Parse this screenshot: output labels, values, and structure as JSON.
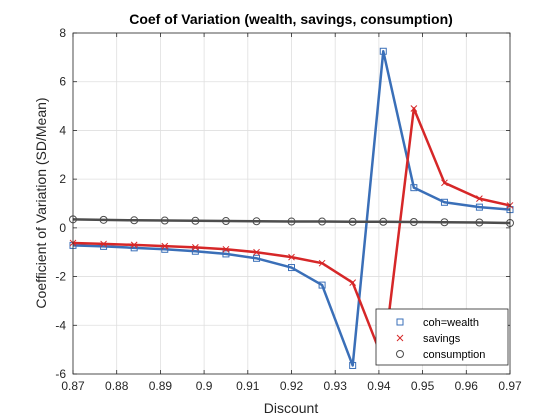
{
  "chart_data": {
    "type": "line",
    "title": "Coef of Variation (wealth, savings, consumption)",
    "xlabel": "Discount",
    "ylabel": "Coefficient of Variation (SD/Mean)",
    "xlim": [
      0.87,
      0.97
    ],
    "ylim": [
      -6,
      8
    ],
    "xticks": [
      "0.87",
      "0.88",
      "0.89",
      "0.9",
      "0.91",
      "0.92",
      "0.93",
      "0.94",
      "0.95",
      "0.96",
      "0.97"
    ],
    "yticks": [
      "-6",
      "-4",
      "-2",
      "0",
      "2",
      "4",
      "6",
      "8"
    ],
    "grid": true,
    "legend_position": "bottom-right",
    "x": [
      0.87,
      0.877,
      0.884,
      0.891,
      0.898,
      0.905,
      0.912,
      0.92,
      0.927,
      0.934,
      0.941,
      0.948,
      0.955,
      0.963,
      0.97
    ],
    "series": [
      {
        "name": "coh=wealth",
        "marker": "square",
        "color": "#3a6fb8",
        "values": [
          -0.72,
          -0.76,
          -0.82,
          -0.88,
          -0.96,
          -1.07,
          -1.25,
          -1.63,
          -2.35,
          -5.65,
          7.25,
          1.65,
          1.05,
          0.85,
          0.75
        ]
      },
      {
        "name": "savings",
        "marker": "x",
        "color": "#d62728",
        "values": [
          -0.62,
          -0.66,
          -0.7,
          -0.75,
          -0.8,
          -0.88,
          -1.0,
          -1.2,
          -1.45,
          -2.25,
          -5.45,
          4.9,
          1.85,
          1.2,
          0.92
        ]
      },
      {
        "name": "consumption",
        "marker": "circle",
        "color": "#4d4d4d",
        "values": [
          0.35,
          0.33,
          0.31,
          0.3,
          0.29,
          0.28,
          0.27,
          0.26,
          0.26,
          0.25,
          0.25,
          0.24,
          0.23,
          0.22,
          0.2
        ]
      }
    ]
  }
}
